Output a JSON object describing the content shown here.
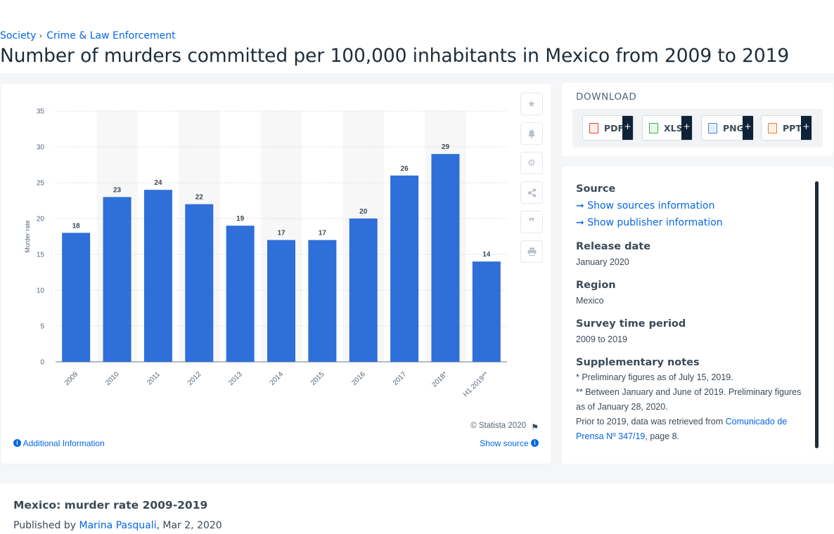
{
  "breadcrumb": {
    "item1": "Society",
    "item2": "Crime & Law Enforcement",
    "separator": "›"
  },
  "page_title": "Number of murders committed per 100,000 inhabitants in Mexico from 2009 to 2019",
  "toolbar": {
    "icons": [
      "star-icon",
      "bell-icon",
      "gear-icon",
      "share-icon",
      "quote-icon",
      "print-icon"
    ]
  },
  "chart_footer": {
    "copyright": "© Statista 2020",
    "additional_info": "Additional Information",
    "show_source": "Show source"
  },
  "chart_data": {
    "type": "bar",
    "categories": [
      "2009",
      "2010",
      "2011",
      "2012",
      "2013",
      "2014",
      "2015",
      "2016",
      "2017",
      "2018*",
      "H1 2019**"
    ],
    "values": [
      18,
      23,
      24,
      22,
      19,
      17,
      17,
      20,
      26,
      29,
      14
    ],
    "ylabel": "Murder rate",
    "xlabel": "",
    "ylim": [
      0,
      35
    ],
    "yticks": [
      0,
      5,
      10,
      15,
      20,
      25,
      30,
      35
    ],
    "bar_color": "#2e6fd9",
    "grid": true,
    "data_labels": true
  },
  "download": {
    "title": "DOWNLOAD",
    "buttons": [
      {
        "label": "PDF",
        "color": "#e8423a"
      },
      {
        "label": "XLS",
        "color": "#3ea84a"
      },
      {
        "label": "PNG",
        "color": "#4a86d6"
      },
      {
        "label": "PPT",
        "color": "#ee7a2d"
      }
    ],
    "plus": "+"
  },
  "meta": {
    "source_heading": "Source",
    "show_sources": "Show sources information",
    "show_publisher": "Show publisher information",
    "release_heading": "Release date",
    "release_value": "January 2020",
    "region_heading": "Region",
    "region_value": "Mexico",
    "survey_heading": "Survey time period",
    "survey_value": "2009 to 2019",
    "notes_heading": "Supplementary notes",
    "note1": "* Preliminary figures as of July 15, 2019.",
    "note2": "** Between January and June of 2019. Preliminary figures as of January 28, 2020.",
    "note3_prefix": "Prior to 2019, data was retrieved from ",
    "note3_link": "Comunicado de Prensa Nº 347/19",
    "note3_suffix": ", page 8."
  },
  "bottom": {
    "title": "Mexico: murder rate 2009-2019",
    "published_prefix": "Published by ",
    "author": "Marina Pasquali",
    "date": ", Mar 2, 2020"
  }
}
